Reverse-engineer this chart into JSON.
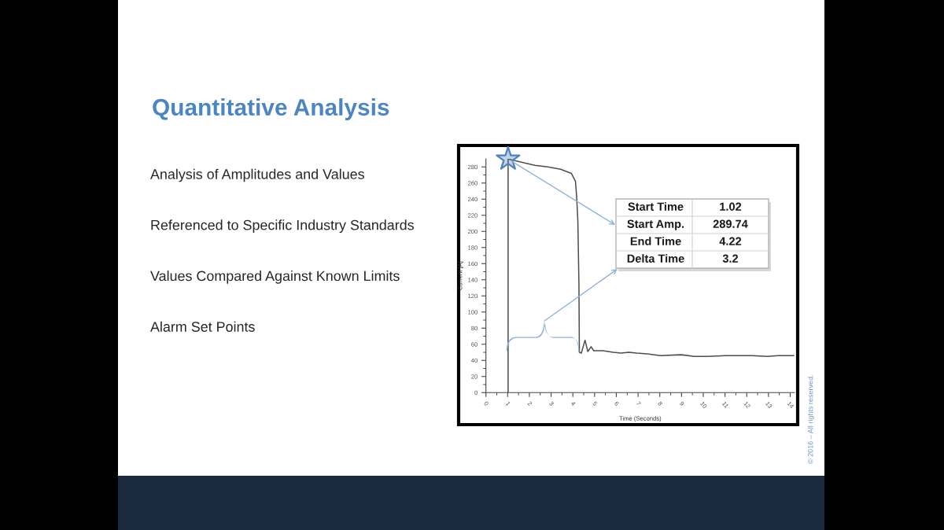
{
  "chart_data": [
    {
      "type": "other",
      "title": "Quantitative Analysis",
      "annotations": [
        "Analysis of Amplitudes and Values",
        "Referenced to Specific Industry Standards",
        "Values Compared Against Known Limits",
        "Alarm Set Points",
        "© 2016 – All rights reserved."
      ]
    },
    {
      "type": "line",
      "xlabel": "Time (Seconds)",
      "ylabel": "Current [A]",
      "xlim": [
        0,
        14.2
      ],
      "ylim": [
        0,
        290
      ],
      "xticks": [
        0,
        {
          "value": 0.5,
          "label": null
        },
        1,
        {
          "value": 1.5,
          "label": null
        },
        2,
        {
          "value": 2.5,
          "label": null
        },
        3,
        {
          "value": 3.5,
          "label": null
        },
        4,
        {
          "value": 4.5,
          "label": null
        },
        5,
        {
          "value": 5.5,
          "label": null
        },
        6,
        {
          "value": 6.5,
          "label": null
        },
        7,
        {
          "value": 7.5,
          "label": null
        },
        8,
        {
          "value": 8.5,
          "label": null
        },
        9,
        {
          "value": 9.5,
          "label": null
        },
        10,
        {
          "value": 10.5,
          "label": null
        },
        11,
        {
          "value": 11.5,
          "label": null
        },
        12,
        {
          "value": 12.5,
          "label": null
        },
        13,
        {
          "value": 13.5,
          "label": null
        },
        14
      ],
      "yticks": [
        0,
        {
          "value": 10,
          "label": null
        },
        20,
        {
          "value": 30,
          "label": null
        },
        40,
        {
          "value": 50,
          "label": null
        },
        60,
        {
          "value": 70,
          "label": null
        },
        80,
        {
          "value": 90,
          "label": null
        },
        100,
        {
          "value": 110,
          "label": null
        },
        120,
        {
          "value": 130,
          "label": null
        },
        140,
        {
          "value": 150,
          "label": null
        },
        160,
        {
          "value": 170,
          "label": null
        },
        180,
        {
          "value": 190,
          "label": null
        },
        200,
        {
          "value": 210,
          "label": null
        },
        220,
        {
          "value": 230,
          "label": null
        },
        240,
        {
          "value": 250,
          "label": null
        },
        260,
        {
          "value": 270,
          "label": null
        },
        280
      ],
      "series": [
        {
          "type": "line",
          "color": "#4d4d4d",
          "x": [
            1.02,
            1.02,
            2.25,
            2.85,
            3.44,
            3.93,
            4.12,
            4.17,
            4.23,
            4.28,
            4.3,
            4.39,
            4.56,
            4.69,
            4.84,
            4.96,
            5.38,
            5.86,
            6.21,
            6.58,
            6.94,
            7.42,
            8.03,
            8.99,
            9.59,
            10.19,
            11.03,
            12.24,
            12.96,
            13.44,
            14.16
          ],
          "values": [
            0,
            289.74,
            282,
            280,
            277,
            272,
            262,
            245,
            213,
            134,
            50,
            49,
            65,
            51,
            57,
            52,
            52,
            50,
            49,
            50,
            49,
            48,
            46,
            47,
            45,
            45,
            46,
            46,
            45,
            46,
            46
          ]
        },
        {
          "type": "scatter",
          "marker": "star",
          "color": "#4f81bd",
          "x": [
            1.02
          ],
          "values": [
            289.74
          ]
        }
      ],
      "annotations": [
        "Start Time",
        "1.02",
        {
          "text": "Start Amp.",
          "x": 1.02,
          "y": 289.74
        },
        "289.74",
        "End Time",
        "4.22",
        "Delta Time",
        "3.2"
      ]
    }
  ]
}
